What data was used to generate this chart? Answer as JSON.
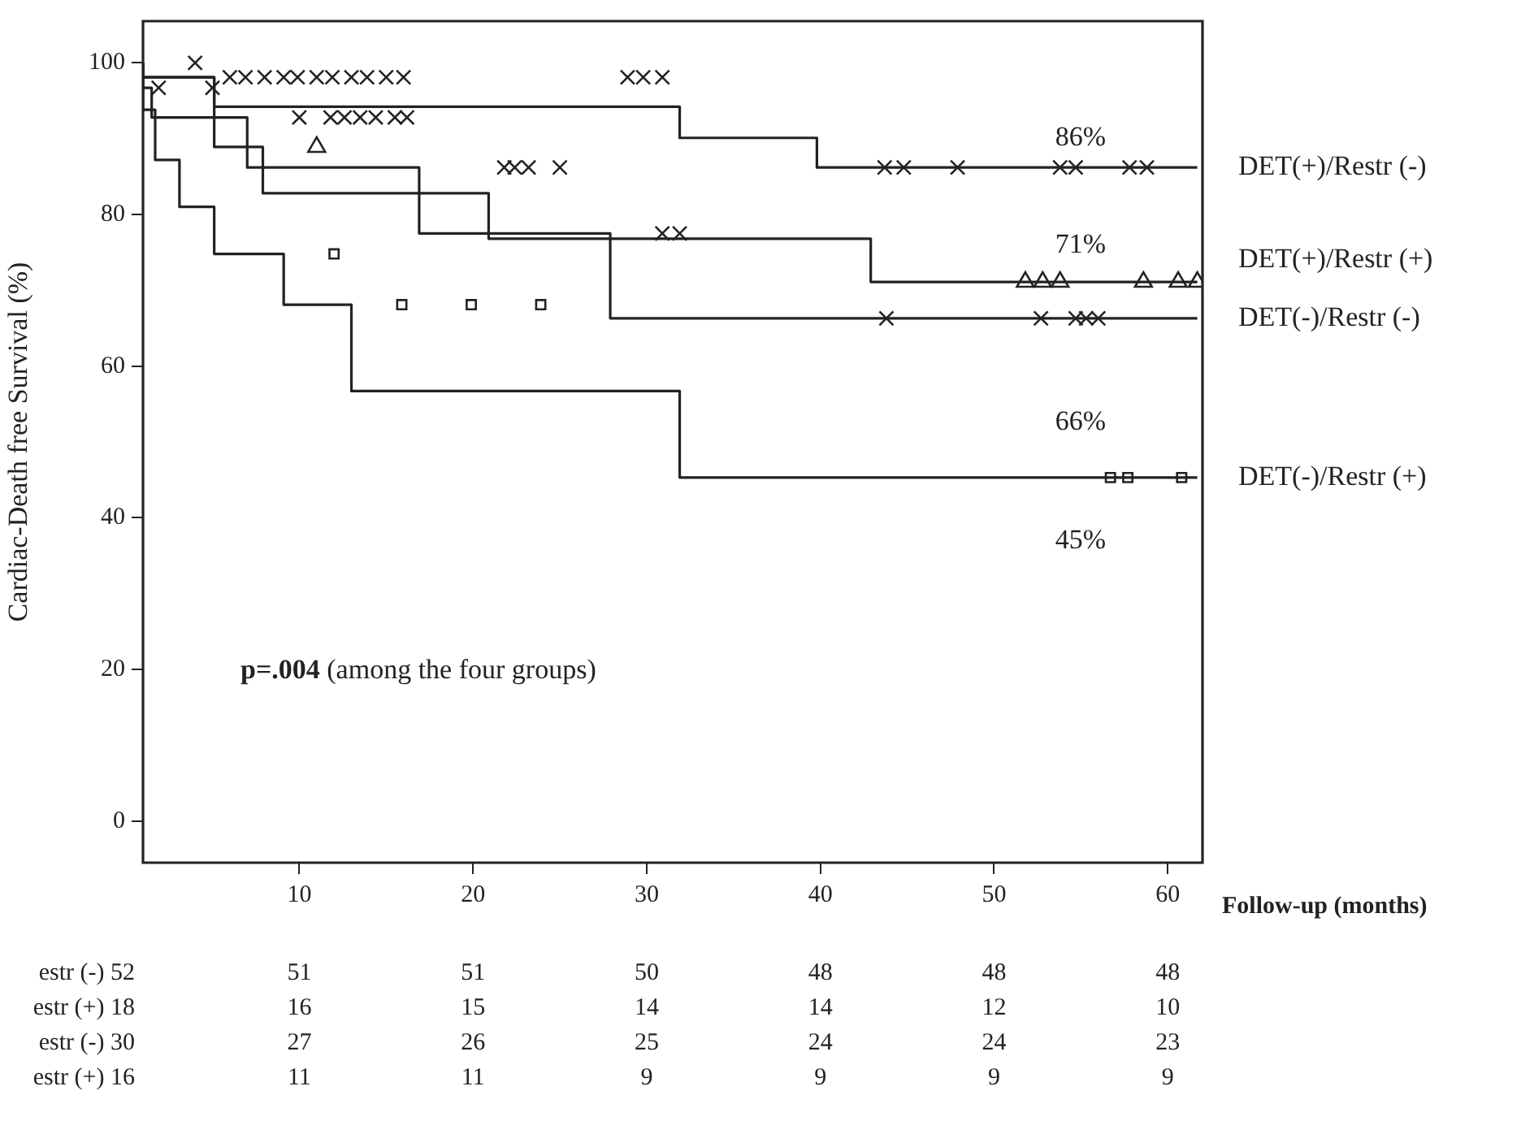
{
  "chart_data": {
    "type": "step",
    "ylabel": "Cardiac-Death free Survival (%)",
    "xlabel": "Follow-up (months)",
    "xlim": [
      1,
      62
    ],
    "xticks": [
      10,
      20,
      30,
      40,
      50,
      60
    ],
    "ylim": [
      -5.5,
      105.5
    ],
    "yticks": [
      0,
      20,
      40,
      60,
      80,
      100
    ],
    "series": [
      {
        "name": "DET(+)/Restr (-)",
        "color": "#222222",
        "x": [
          1,
          5.1,
          31.9,
          39.8,
          41.8,
          61.7
        ],
        "values": [
          100,
          98.1,
          94.2,
          90.1,
          86.2,
          86.2
        ]
      },
      {
        "name": "DET(+)/Restr (+)",
        "color": "#222222",
        "x": [
          1,
          5.1,
          7.9,
          20.9,
          42.9,
          43.8,
          61.7
        ],
        "values": [
          100,
          98.1,
          88.9,
          82.8,
          76.8,
          71.1,
          71.1
        ]
      },
      {
        "name": "DET(-)/Restr (-)",
        "color": "#222222",
        "x": [
          1,
          1.5,
          7,
          16.9,
          27.9,
          38.9,
          61.7
        ],
        "values": [
          100,
          96.7,
          92.8,
          86.2,
          77.5,
          66.3,
          66.3
        ]
      },
      {
        "name": "DET(-)/Restr (+)",
        "color": "#222222",
        "x": [
          1,
          1.7,
          3.1,
          5.1,
          9.1,
          13,
          31.9,
          35.8,
          61.7
        ],
        "values": [
          100,
          93.8,
          87.2,
          81,
          74.8,
          68.1,
          56.7,
          45.3,
          45.3
        ]
      },
      {
        "type": "scatter",
        "color": "#222222",
        "marker": "cross",
        "x": [
          4,
          6,
          6.9,
          8,
          9.1,
          9.9,
          11,
          11.9,
          13,
          13.9,
          15,
          16,
          28.9,
          29.8,
          30.9,
          43.7,
          44.8,
          47.9,
          53.8,
          54.7,
          57.8,
          58.8
        ],
        "values": [
          100,
          98.1,
          98.1,
          98.1,
          98.1,
          98.1,
          98.1,
          98.1,
          98.1,
          98.1,
          98.1,
          98.1,
          98.1,
          98.1,
          98.1,
          86.2,
          86.2,
          86.2,
          86.2,
          86.2,
          86.2,
          86.2
        ]
      },
      {
        "type": "scatter",
        "color": "#222222",
        "marker": "triangle",
        "x": [
          11,
          51.8,
          52.8,
          53.8,
          58.6,
          60.6,
          61.7
        ],
        "values": [
          88.9,
          71.1,
          71.1,
          71.1,
          71.1,
          71.1,
          71.1
        ]
      },
      {
        "type": "scatter",
        "color": "#222222",
        "marker": "cross",
        "x": [
          1.9,
          5,
          10,
          11.8,
          12.6,
          13.5,
          14.4,
          15.5,
          16.2,
          21.8,
          22.4,
          23.2,
          25,
          30.9,
          31.9,
          43.8,
          52.7,
          54.7,
          55.3,
          56
        ],
        "values": [
          96.7,
          96.7,
          92.8,
          92.8,
          92.8,
          92.8,
          92.8,
          92.8,
          92.8,
          86.2,
          86.2,
          86.2,
          86.2,
          77.5,
          77.5,
          66.3,
          66.3,
          66.3,
          66.3,
          66.3
        ]
      },
      {
        "type": "scatter",
        "color": "#222222",
        "marker": "square",
        "x": [
          12,
          15.9,
          19.9,
          23.9,
          56.7,
          57.7,
          60.8
        ],
        "values": [
          74.8,
          68.1,
          68.1,
          68.1,
          45.3,
          45.3,
          45.3
        ]
      }
    ],
    "annotations": [
      "p=.004 (among the four groups)",
      "86%",
      "71%",
      "66%",
      "45%",
      "estr (-) 52  51  51  50  48  48  48",
      "estr (+) 18  16  15  14  14  12  10",
      "estr (-) 30  27  26  25  24  24  23",
      "estr (+) 16  11  11  9  9  9  9"
    ]
  }
}
